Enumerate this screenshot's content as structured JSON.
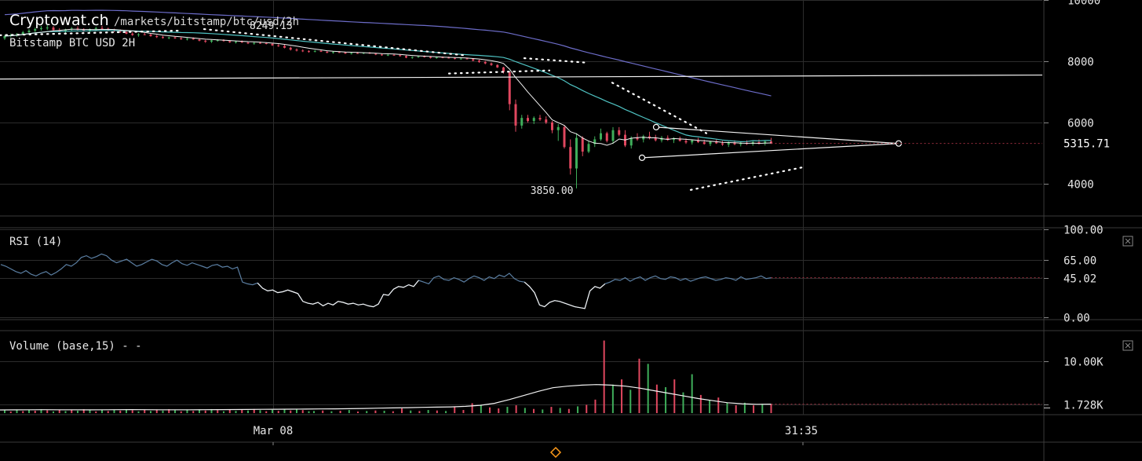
{
  "header": {
    "site": "Cryptowat.ch",
    "path": "/markets/bitstamp/btc/usd/2h",
    "market": "Bitstamp BTC USD 2H",
    "high_label": "8249.13"
  },
  "colors": {
    "up": "#3fae5a",
    "down": "#e0475f",
    "ma_long": "#6c6cc8",
    "ma_mid": "#4fc3c3",
    "white": "#ffffff",
    "grid": "#2c2c2c",
    "rsi": "#5b7fa3",
    "cursor": "#ff9b1a"
  },
  "chart_data": [
    {
      "id": "price",
      "type": "candlestick",
      "title": "Bitstamp BTC USD 2H",
      "ylim": [
        3000,
        10000
      ],
      "yticks": [
        {
          "value": 10000,
          "label": "10000"
        },
        {
          "value": 8000,
          "label": "8000"
        },
        {
          "value": 6000,
          "label": "6000"
        },
        {
          "value": 4000,
          "label": "4000"
        }
      ],
      "last_price": 5315.71,
      "last_label": "5315.71",
      "low_label": "3850.00",
      "candles": [
        [
          8750,
          8860,
          8700,
          8820
        ],
        [
          8820,
          8900,
          8780,
          8850
        ],
        [
          8850,
          8920,
          8800,
          8880
        ],
        [
          8880,
          8990,
          8850,
          8950
        ],
        [
          8950,
          9050,
          8900,
          9000
        ],
        [
          9000,
          9100,
          8950,
          9050
        ],
        [
          9050,
          9150,
          9000,
          9080
        ],
        [
          9080,
          9180,
          9020,
          9100
        ],
        [
          9100,
          9150,
          9000,
          9020
        ],
        [
          9020,
          9080,
          8950,
          8980
        ],
        [
          8980,
          9060,
          8920,
          9040
        ],
        [
          9040,
          9120,
          8990,
          9070
        ],
        [
          9070,
          9140,
          9010,
          9030
        ],
        [
          9030,
          9080,
          8960,
          8990
        ],
        [
          8990,
          9070,
          8940,
          9050
        ],
        [
          9050,
          9130,
          9000,
          9080
        ],
        [
          9080,
          9160,
          9030,
          9060
        ],
        [
          9060,
          9100,
          8990,
          9010
        ],
        [
          9010,
          9060,
          8950,
          8990
        ],
        [
          8990,
          9040,
          8930,
          8960
        ],
        [
          8960,
          9000,
          8880,
          8900
        ],
        [
          8900,
          8950,
          8830,
          8860
        ],
        [
          8860,
          8920,
          8800,
          8880
        ],
        [
          8880,
          8940,
          8850,
          8870
        ],
        [
          8870,
          8900,
          8800,
          8820
        ],
        [
          8820,
          8860,
          8760,
          8790
        ],
        [
          8790,
          8830,
          8740,
          8760
        ],
        [
          8760,
          8800,
          8720,
          8780
        ],
        [
          8780,
          8820,
          8730,
          8750
        ],
        [
          8750,
          8790,
          8700,
          8720
        ],
        [
          8720,
          8760,
          8680,
          8740
        ],
        [
          8740,
          8780,
          8700,
          8710
        ],
        [
          8710,
          8740,
          8650,
          8670
        ],
        [
          8670,
          8700,
          8600,
          8640
        ],
        [
          8640,
          8700,
          8600,
          8680
        ],
        [
          8680,
          8720,
          8640,
          8690
        ],
        [
          8690,
          8720,
          8640,
          8660
        ],
        [
          8660,
          8680,
          8600,
          8620
        ],
        [
          8620,
          8660,
          8580,
          8640
        ],
        [
          8640,
          8680,
          8600,
          8610
        ],
        [
          8610,
          8640,
          8560,
          8580
        ],
        [
          8580,
          8620,
          8540,
          8600
        ],
        [
          8600,
          8640,
          8570,
          8590
        ],
        [
          8590,
          8620,
          8550,
          8570
        ],
        [
          8570,
          8600,
          8500,
          8520
        ],
        [
          8520,
          8560,
          8470,
          8500
        ],
        [
          8500,
          8540,
          8420,
          8440
        ],
        [
          8440,
          8480,
          8350,
          8380
        ],
        [
          8380,
          8420,
          8320,
          8350
        ],
        [
          8350,
          8390,
          8300,
          8330
        ],
        [
          8330,
          8360,
          8280,
          8320
        ],
        [
          8320,
          8360,
          8290,
          8340
        ],
        [
          8340,
          8370,
          8300,
          8310
        ],
        [
          8310,
          8330,
          8260,
          8280
        ],
        [
          8280,
          8320,
          8250,
          8300
        ],
        [
          8300,
          8330,
          8270,
          8290
        ],
        [
          8290,
          8310,
          8240,
          8250
        ],
        [
          8250,
          8290,
          8220,
          8270
        ],
        [
          8270,
          8300,
          8240,
          8260
        ],
        [
          8260,
          8290,
          8230,
          8280
        ],
        [
          8280,
          8300,
          8240,
          8250
        ],
        [
          8250,
          8270,
          8200,
          8220
        ],
        [
          8220,
          8240,
          8180,
          8200
        ],
        [
          8200,
          8230,
          8170,
          8210
        ],
        [
          8210,
          8240,
          8180,
          8200
        ],
        [
          8200,
          8220,
          8150,
          8170
        ],
        [
          8170,
          8190,
          8100,
          8120
        ],
        [
          8120,
          8160,
          8080,
          8140
        ],
        [
          8140,
          8180,
          8110,
          8160
        ],
        [
          8160,
          8190,
          8120,
          8140
        ],
        [
          8140,
          8170,
          8090,
          8110
        ],
        [
          8110,
          8150,
          8080,
          8130
        ],
        [
          8130,
          8160,
          8100,
          8120
        ],
        [
          8120,
          8150,
          8090,
          8100
        ],
        [
          8100,
          8130,
          8060,
          8080
        ],
        [
          8080,
          8110,
          8050,
          8090
        ],
        [
          8090,
          8120,
          8060,
          8070
        ],
        [
          8070,
          8090,
          8000,
          8020
        ],
        [
          8020,
          8050,
          7950,
          7980
        ],
        [
          7980,
          8010,
          7900,
          7930
        ],
        [
          7930,
          7960,
          7850,
          7880
        ],
        [
          7880,
          7900,
          7780,
          7800
        ],
        [
          7800,
          7820,
          7600,
          7650
        ],
        [
          7650,
          7680,
          6400,
          6600
        ],
        [
          6600,
          6750,
          5700,
          5900
        ],
        [
          5900,
          6250,
          5800,
          6150
        ],
        [
          6150,
          6250,
          6000,
          6050
        ],
        [
          6050,
          6200,
          5950,
          6150
        ],
        [
          6150,
          6250,
          6050,
          6100
        ],
        [
          6100,
          6200,
          5950,
          6000
        ],
        [
          6000,
          6050,
          5650,
          5750
        ],
        [
          5750,
          5950,
          5400,
          5850
        ],
        [
          5850,
          5900,
          5150,
          5200
        ],
        [
          5200,
          5450,
          4300,
          4500
        ],
        [
          4500,
          5650,
          3850,
          5500
        ],
        [
          5500,
          5550,
          4900,
          5050
        ],
        [
          5050,
          5400,
          5000,
          5300
        ],
        [
          5300,
          5550,
          5200,
          5450
        ],
        [
          5450,
          5800,
          5400,
          5650
        ],
        [
          5650,
          5700,
          5350,
          5400
        ],
        [
          5400,
          5850,
          5300,
          5750
        ],
        [
          5750,
          5850,
          5550,
          5600
        ],
        [
          5600,
          5750,
          5200,
          5250
        ],
        [
          5250,
          5550,
          5150,
          5500
        ],
        [
          5500,
          5650,
          5400,
          5450
        ],
        [
          5450,
          5600,
          5350,
          5550
        ],
        [
          5550,
          5700,
          5450,
          5500
        ],
        [
          5500,
          5600,
          5380,
          5420
        ],
        [
          5420,
          5560,
          5350,
          5500
        ],
        [
          5500,
          5580,
          5400,
          5430
        ],
        [
          5430,
          5520,
          5330,
          5460
        ],
        [
          5460,
          5540,
          5380,
          5400
        ],
        [
          5400,
          5480,
          5300,
          5350
        ],
        [
          5350,
          5450,
          5280,
          5420
        ],
        [
          5420,
          5500,
          5330,
          5360
        ],
        [
          5360,
          5440,
          5280,
          5300
        ],
        [
          5300,
          5400,
          5230,
          5380
        ],
        [
          5380,
          5450,
          5300,
          5320
        ],
        [
          5320,
          5400,
          5240,
          5280
        ],
        [
          5280,
          5380,
          5200,
          5350
        ],
        [
          5350,
          5420,
          5260,
          5290
        ],
        [
          5290,
          5380,
          5220,
          5340
        ],
        [
          5340,
          5420,
          5270,
          5300
        ],
        [
          5300,
          5400,
          5240,
          5360
        ],
        [
          5360,
          5450,
          5280,
          5330
        ],
        [
          5330,
          5420,
          5250,
          5380
        ],
        [
          5380,
          5500,
          5300,
          5315
        ]
      ]
    },
    {
      "id": "rsi",
      "type": "line",
      "title": "RSI (14)",
      "ylim": [
        0,
        100
      ],
      "yticks": [
        {
          "value": 100,
          "label": "100.00"
        },
        {
          "value": 65,
          "label": "65.00"
        },
        {
          "value": 45.02,
          "label": "45.02"
        },
        {
          "value": 0,
          "label": "0.00"
        }
      ],
      "last_value": 45.02,
      "values": [
        60,
        58,
        55,
        52,
        50,
        53,
        49,
        47,
        50,
        52,
        48,
        51,
        55,
        60,
        58,
        62,
        68,
        70,
        67,
        69,
        72,
        70,
        65,
        62,
        64,
        66,
        62,
        58,
        60,
        63,
        66,
        64,
        60,
        58,
        62,
        65,
        61,
        59,
        62,
        60,
        58,
        56,
        59,
        60,
        57,
        58,
        55,
        57,
        40,
        38,
        37,
        39,
        33,
        30,
        31,
        28,
        29,
        31,
        29,
        27,
        18,
        16,
        15,
        17,
        13,
        16,
        14,
        18,
        17,
        15,
        16,
        14,
        15,
        13,
        12,
        15,
        26,
        25,
        32,
        35,
        34,
        37,
        35,
        42,
        40,
        38,
        45,
        47,
        43,
        42,
        45,
        43,
        40,
        44,
        47,
        45,
        42,
        46,
        44,
        48,
        46,
        50,
        44,
        41,
        40,
        35,
        28,
        14,
        12,
        17,
        19,
        18,
        16,
        14,
        12,
        11,
        10,
        30,
        35,
        33,
        38,
        40,
        43,
        42,
        45,
        41,
        44,
        46,
        42,
        45,
        47,
        44,
        43,
        46,
        45,
        42,
        44,
        41,
        43,
        45,
        46,
        44,
        42,
        43,
        45,
        44,
        42,
        46,
        43,
        44,
        45,
        47,
        44,
        45
      ],
      "markers_note": ""
    },
    {
      "id": "volume",
      "type": "bar",
      "title": "Volume (base,15) - -",
      "ylim": [
        0,
        15000
      ],
      "yticks": [
        {
          "value": 10000,
          "label": "10.00K"
        },
        {
          "value": 1728,
          "label": "1.728K"
        }
      ],
      "last_value": 1728,
      "ma": [
        600,
        620,
        640,
        650,
        640,
        630,
        620,
        640,
        650,
        660,
        650,
        640,
        630,
        640,
        650,
        660,
        680,
        700,
        720,
        740,
        760,
        780,
        800,
        820,
        850,
        900,
        950,
        1000,
        1050,
        1100,
        1150,
        1200,
        1300,
        1500,
        1900,
        2600,
        3400,
        4200,
        4900,
        5200,
        5400,
        5500,
        5400,
        5200,
        4800,
        4300,
        3800,
        3300,
        2800,
        2400,
        2000,
        1800,
        1700,
        1728
      ],
      "bars": [
        [
          400,
          "up"
        ],
        [
          500,
          "down"
        ],
        [
          350,
          "up"
        ],
        [
          450,
          "down"
        ],
        [
          600,
          "up"
        ],
        [
          300,
          "down"
        ],
        [
          400,
          "up"
        ],
        [
          500,
          "down"
        ],
        [
          450,
          "up"
        ],
        [
          350,
          "down"
        ],
        [
          900,
          "down"
        ],
        [
          500,
          "up"
        ],
        [
          400,
          "down"
        ],
        [
          600,
          "up"
        ],
        [
          500,
          "down"
        ],
        [
          400,
          "up"
        ],
        [
          1300,
          "down"
        ],
        [
          600,
          "down"
        ],
        [
          1900,
          "down"
        ],
        [
          1500,
          "up"
        ],
        [
          1100,
          "down"
        ],
        [
          900,
          "down"
        ],
        [
          1200,
          "up"
        ],
        [
          1500,
          "down"
        ],
        [
          1000,
          "up"
        ],
        [
          800,
          "down"
        ],
        [
          700,
          "up"
        ],
        [
          1200,
          "down"
        ],
        [
          1000,
          "up"
        ],
        [
          800,
          "down"
        ],
        [
          1300,
          "up"
        ],
        [
          1600,
          "down"
        ],
        [
          2600,
          "down"
        ],
        [
          14000,
          "down"
        ],
        [
          5500,
          "up"
        ],
        [
          6500,
          "down"
        ],
        [
          4500,
          "up"
        ],
        [
          10500,
          "down"
        ],
        [
          9500,
          "up"
        ],
        [
          5500,
          "down"
        ],
        [
          5000,
          "up"
        ],
        [
          6500,
          "down"
        ],
        [
          4000,
          "up"
        ],
        [
          7500,
          "up"
        ],
        [
          3500,
          "down"
        ],
        [
          2500,
          "up"
        ],
        [
          3000,
          "down"
        ],
        [
          2000,
          "up"
        ],
        [
          1500,
          "down"
        ],
        [
          2000,
          "up"
        ],
        [
          1500,
          "down"
        ],
        [
          1800,
          "up"
        ],
        [
          1728,
          "down"
        ]
      ]
    }
  ],
  "xaxis": {
    "labels": [
      {
        "label": "Mar 08",
        "frac": 0.262
      },
      {
        "label": "31:35",
        "frac": 0.77
      }
    ]
  }
}
